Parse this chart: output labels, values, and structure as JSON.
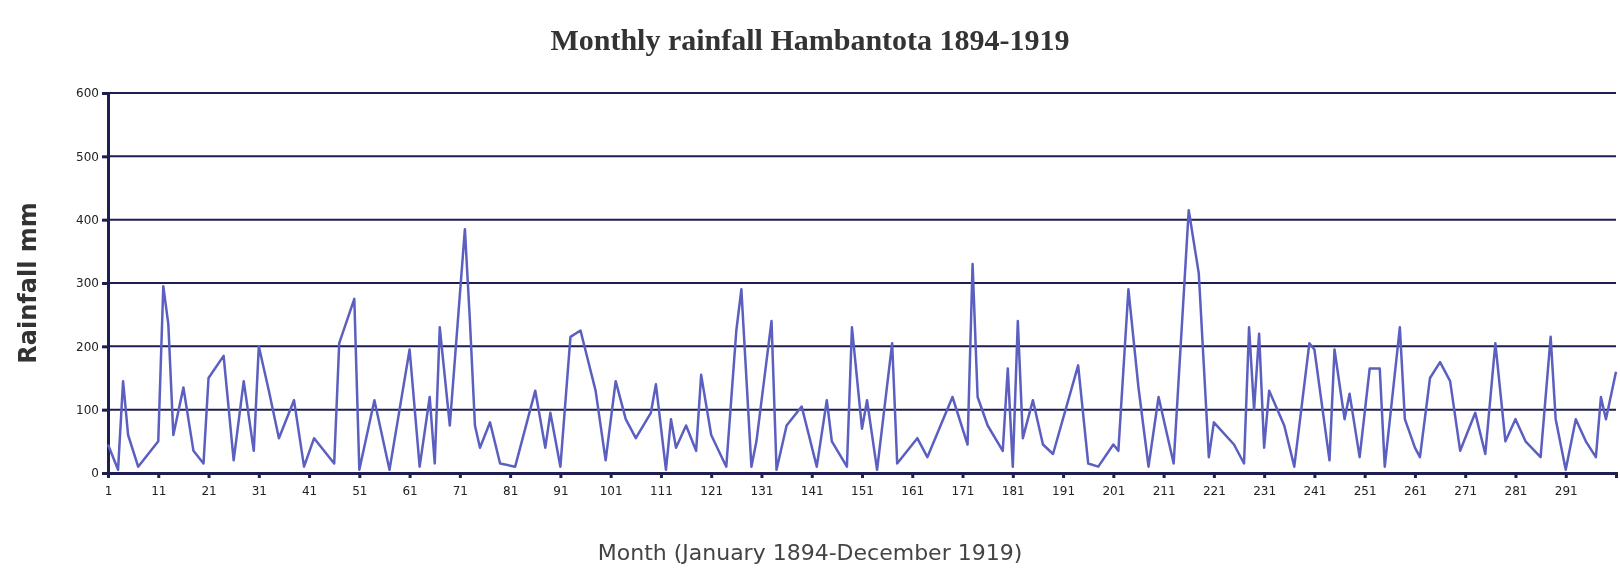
{
  "chart_data": {
    "type": "line",
    "title": "Monthly rainfall Hambantota 1894-1919",
    "xlabel": "Month (January 1894-December 1919)",
    "ylabel": "Rainfall mm",
    "xlim": [
      1,
      301
    ],
    "xticks": [
      1,
      11,
      21,
      31,
      41,
      51,
      61,
      71,
      81,
      91,
      101,
      111,
      121,
      131,
      141,
      151,
      161,
      171,
      181,
      191,
      201,
      211,
      221,
      231,
      241,
      251,
      261,
      271,
      281,
      291
    ],
    "ylim": [
      0,
      600
    ],
    "yticks": [
      0,
      100,
      200,
      300,
      400,
      500,
      600
    ],
    "grid": "y",
    "marker": "none",
    "line_style": "solid",
    "series": [
      {
        "color": "#5b5fc0",
        "x": [
          1,
          3,
          4,
          5,
          7,
          11,
          12,
          13,
          14,
          16,
          18,
          20,
          21,
          24,
          26,
          28,
          30,
          31,
          33,
          35,
          38,
          40,
          42,
          46,
          47,
          50,
          51,
          54,
          57,
          61,
          63,
          65,
          66,
          67,
          69,
          72,
          73,
          74,
          75,
          77,
          79,
          82,
          86,
          88,
          89,
          91,
          93,
          95,
          98,
          100,
          102,
          104,
          106,
          109,
          110,
          112,
          113,
          114,
          116,
          118,
          119,
          121,
          124,
          126,
          127,
          129,
          130,
          133,
          134,
          136,
          139,
          142,
          144,
          145,
          148,
          149,
          151,
          152,
          154,
          157,
          158,
          162,
          164,
          169,
          172,
          173,
          174,
          176,
          179,
          180,
          181,
          182,
          183,
          185,
          187,
          189,
          194,
          196,
          198,
          201,
          202,
          204,
          206,
          208,
          210,
          213,
          216,
          218,
          220,
          221,
          225,
          227,
          228,
          229,
          230,
          231,
          232,
          235,
          237,
          240,
          241,
          244,
          245,
          247,
          248,
          250,
          252,
          254,
          255,
          258,
          259,
          261,
          262,
          264,
          266,
          268,
          270,
          273,
          275,
          277,
          279,
          281,
          283,
          286,
          288,
          289,
          291,
          293,
          295,
          297,
          298,
          299,
          301
        ],
        "values": [
          45,
          5,
          145,
          60,
          10,
          50,
          295,
          235,
          60,
          135,
          35,
          15,
          150,
          185,
          20,
          145,
          35,
          200,
          130,
          55,
          115,
          10,
          55,
          15,
          205,
          275,
          5,
          115,
          5,
          195,
          10,
          120,
          15,
          230,
          75,
          385,
          240,
          75,
          40,
          80,
          15,
          10,
          130,
          40,
          95,
          10,
          215,
          225,
          130,
          20,
          145,
          85,
          55,
          95,
          140,
          5,
          85,
          40,
          75,
          35,
          155,
          60,
          10,
          225,
          290,
          10,
          50,
          240,
          5,
          75,
          105,
          10,
          115,
          50,
          10,
          230,
          70,
          115,
          5,
          205,
          15,
          55,
          25,
          120,
          45,
          330,
          120,
          75,
          35,
          165,
          10,
          240,
          55,
          115,
          45,
          30,
          170,
          15,
          10,
          45,
          35,
          290,
          135,
          10,
          120,
          15,
          415,
          315,
          25,
          80,
          45,
          15,
          230,
          100,
          220,
          40,
          130,
          75,
          10,
          205,
          195,
          20,
          195,
          85,
          125,
          25,
          165,
          165,
          10,
          230,
          85,
          40,
          25,
          150,
          175,
          145,
          35,
          95,
          30,
          205,
          50,
          85,
          50,
          25,
          215,
          85,
          5,
          85,
          50,
          25,
          120,
          85,
          160
        ]
      }
    ]
  }
}
